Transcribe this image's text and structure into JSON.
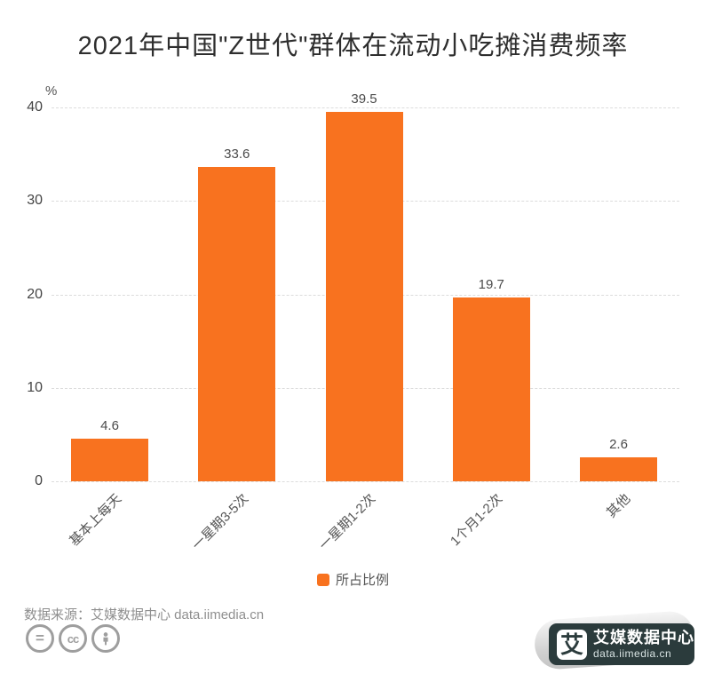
{
  "title": "2021年中国\"Z世代\"群体在流动小吃摊消费频率",
  "chart_data": {
    "type": "bar",
    "title": "2021年中国\"Z世代\"群体在流动小吃摊消费频率",
    "unit_label": "%",
    "categories": [
      "基本上每天",
      "一星期3-5次",
      "一星期1-2次",
      "1个月1-2次",
      "其他"
    ],
    "series": [
      {
        "name": "所占比例",
        "values": [
          4.6,
          33.6,
          39.5,
          19.7,
          2.6
        ]
      }
    ],
    "ylim": [
      0,
      40
    ],
    "yticks": [
      0,
      10,
      20,
      30,
      40
    ],
    "grid": "horizontal-dashed",
    "legend_position": "bottom-center",
    "value_labels_shown": true
  },
  "colors": {
    "bar": "#F8721F",
    "grid": "#dcdcdc",
    "axis_text": "#444444",
    "muted_text": "#8f8f8f"
  },
  "footer": {
    "source_text": "数据来源：艾媒数据中心 data.iimedia.cn",
    "license_icons": [
      "equals-icon",
      "creative-commons-icon",
      "attribution-person-icon"
    ]
  },
  "logo": {
    "mark": "艾",
    "name": "艾媒数据中心",
    "domain": "data.iimedia.cn",
    "badge_color": "#2B3B3C"
  }
}
